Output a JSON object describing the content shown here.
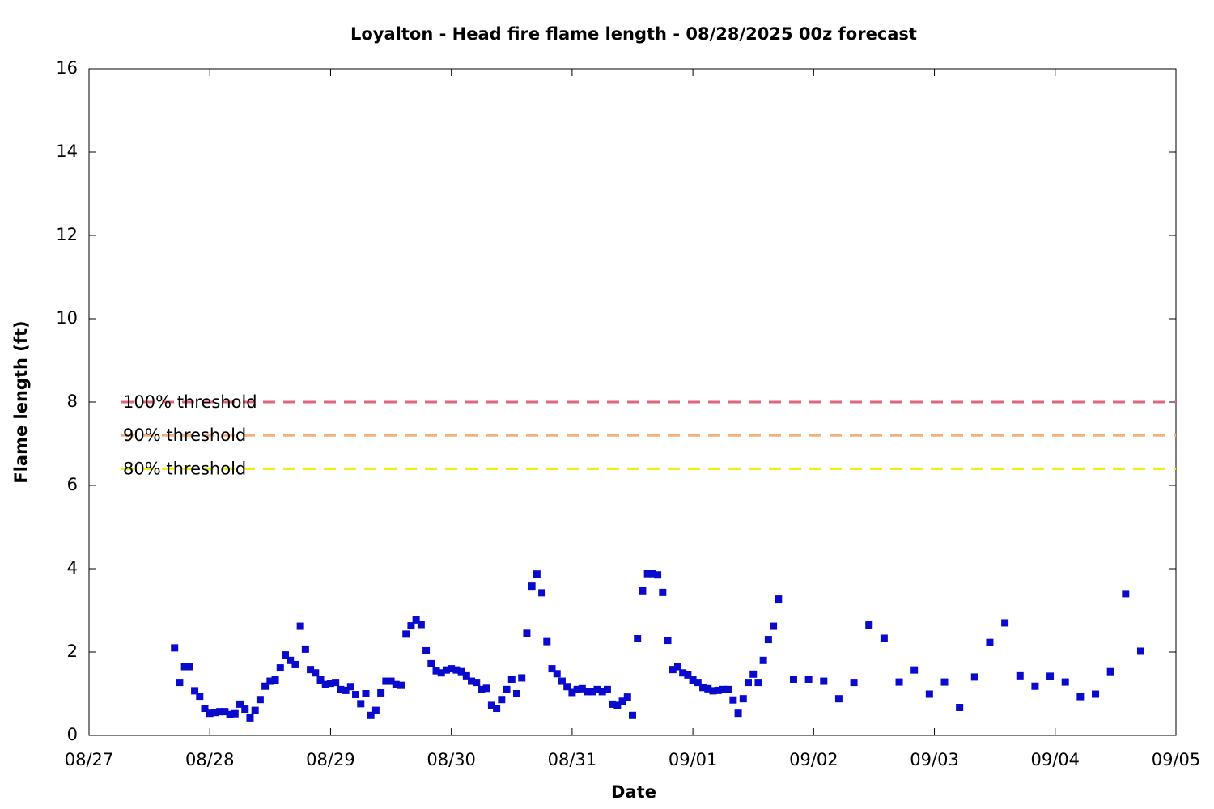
{
  "chart_data": {
    "type": "scatter",
    "title": "Loyalton - Head fire flame length - 08/28/2025 00z forecast",
    "xlabel": "Date",
    "ylabel": "Flame length (ft)",
    "color": "#0a0acd",
    "x": [
      17,
      18,
      19,
      20,
      21,
      22,
      23,
      24,
      25,
      26,
      27,
      28,
      29,
      30,
      31,
      32,
      33,
      34,
      35,
      36,
      37,
      38,
      39,
      40,
      41,
      42,
      43,
      44,
      45,
      46,
      47,
      48,
      49,
      50,
      51,
      52,
      53,
      54,
      55,
      56,
      57,
      58,
      59,
      60,
      61,
      62,
      63,
      64,
      65,
      66,
      67,
      68,
      69,
      70,
      71,
      72,
      73,
      74,
      75,
      76,
      77,
      78,
      79,
      80,
      81,
      82,
      83,
      84,
      85,
      86,
      87,
      88,
      89,
      90,
      91,
      92,
      93,
      94,
      95,
      96,
      97,
      98,
      99,
      100,
      101,
      102,
      103,
      104,
      105,
      106,
      107,
      108,
      109,
      110,
      111,
      112,
      113,
      114,
      115,
      116,
      117,
      118,
      119,
      120,
      121,
      122,
      123,
      124,
      125,
      126,
      127,
      128,
      129,
      130,
      131,
      132,
      133,
      134,
      135,
      136,
      137,
      140,
      143,
      146,
      149,
      152,
      155,
      158,
      161,
      164,
      167,
      170,
      173,
      176,
      179,
      182,
      185,
      188,
      191,
      194,
      197,
      200,
      203,
      206,
      209
    ],
    "values": [
      2.1,
      1.27,
      1.65,
      1.65,
      1.07,
      0.94,
      0.65,
      0.53,
      0.55,
      0.57,
      0.57,
      0.5,
      0.52,
      0.75,
      0.63,
      0.42,
      0.6,
      0.86,
      1.18,
      1.3,
      1.33,
      1.62,
      1.93,
      1.8,
      1.7,
      2.62,
      2.07,
      1.58,
      1.5,
      1.33,
      1.22,
      1.25,
      1.27,
      1.1,
      1.08,
      1.17,
      0.98,
      0.76,
      1.0,
      0.48,
      0.6,
      1.02,
      1.3,
      1.3,
      1.22,
      1.2,
      2.43,
      2.63,
      2.77,
      2.66,
      2.03,
      1.72,
      1.55,
      1.5,
      1.57,
      1.6,
      1.57,
      1.53,
      1.43,
      1.3,
      1.27,
      1.1,
      1.13,
      0.72,
      0.65,
      0.86,
      1.1,
      1.35,
      1.0,
      1.38,
      2.45,
      3.58,
      3.87,
      3.42,
      2.25,
      1.6,
      1.48,
      1.3,
      1.17,
      1.03,
      1.1,
      1.12,
      1.05,
      1.05,
      1.1,
      1.05,
      1.1,
      0.75,
      0.72,
      0.82,
      0.92,
      0.48,
      2.32,
      3.47,
      3.88,
      3.88,
      3.85,
      3.43,
      2.28,
      1.58,
      1.65,
      1.5,
      1.45,
      1.33,
      1.27,
      1.15,
      1.12,
      1.07,
      1.08,
      1.1,
      1.1,
      0.85,
      0.53,
      0.88,
      1.27,
      1.47,
      1.27,
      1.8,
      2.3,
      2.62,
      3.27,
      1.35,
      1.35,
      1.3,
      0.88,
      1.27,
      2.65,
      2.33,
      1.28,
      1.57,
      0.99,
      1.28,
      0.67,
      1.4,
      2.23,
      2.7,
      1.43,
      1.18,
      1.42,
      1.28,
      0.93,
      0.99,
      1.53,
      3.4,
      2.02
    ],
    "xlim": [
      0,
      216
    ],
    "xticks": [
      {
        "value": 0,
        "label": "08/27"
      },
      {
        "value": 24,
        "label": "08/28"
      },
      {
        "value": 48,
        "label": "08/29"
      },
      {
        "value": 72,
        "label": "08/30"
      },
      {
        "value": 96,
        "label": "08/31"
      },
      {
        "value": 120,
        "label": "09/01"
      },
      {
        "value": 144,
        "label": "09/02"
      },
      {
        "value": 168,
        "label": "09/03"
      },
      {
        "value": 192,
        "label": "09/04"
      },
      {
        "value": 216,
        "label": "09/05"
      }
    ],
    "ylim": [
      0,
      16
    ],
    "yticks": [
      0,
      2,
      4,
      6,
      8,
      10,
      12,
      14,
      16
    ],
    "thresholds": [
      {
        "label": "100% threshold",
        "value": 8,
        "color": "#e06680"
      },
      {
        "label": "90% threshold",
        "value": 7.2,
        "color": "#f5b07a"
      },
      {
        "label": "80% threshold",
        "value": 6.4,
        "color": "#eeee00"
      }
    ]
  }
}
